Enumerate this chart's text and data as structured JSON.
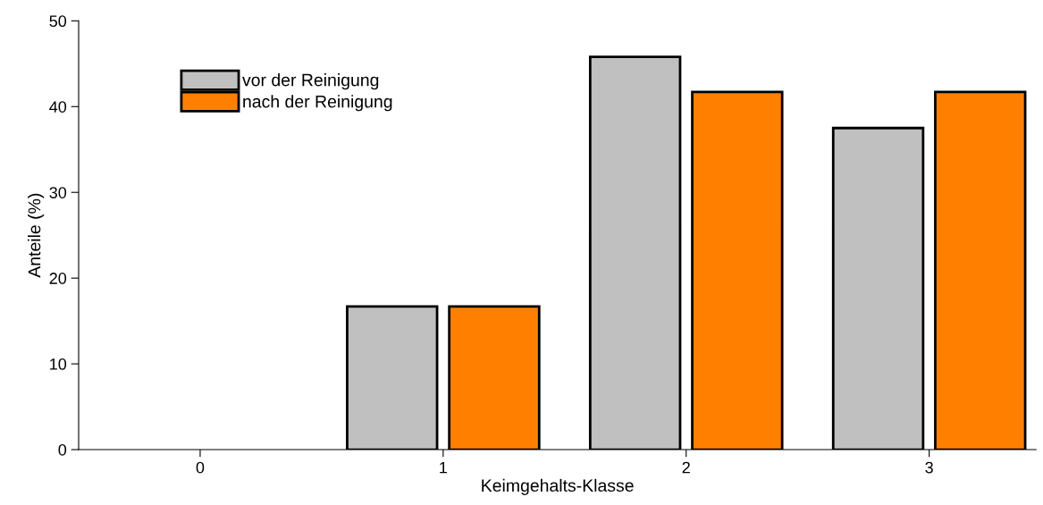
{
  "chart_data": {
    "type": "bar",
    "xlabel": "Keimgehalts-Klasse",
    "ylabel": "Anteile (%)",
    "categories": [
      "0",
      "1",
      "2",
      "3"
    ],
    "series": [
      {
        "name": "vor der Reinigung",
        "color": "#c0c0c0",
        "values": [
          0,
          16.7,
          45.8,
          37.5
        ]
      },
      {
        "name": "nach der Reinigung",
        "color": "#ff8000",
        "values": [
          0,
          16.7,
          41.7,
          41.7
        ]
      }
    ],
    "ylim": [
      0,
      50
    ],
    "yticks": [
      0,
      10,
      20,
      30,
      40,
      50
    ],
    "grid": false,
    "legend": "top left"
  }
}
